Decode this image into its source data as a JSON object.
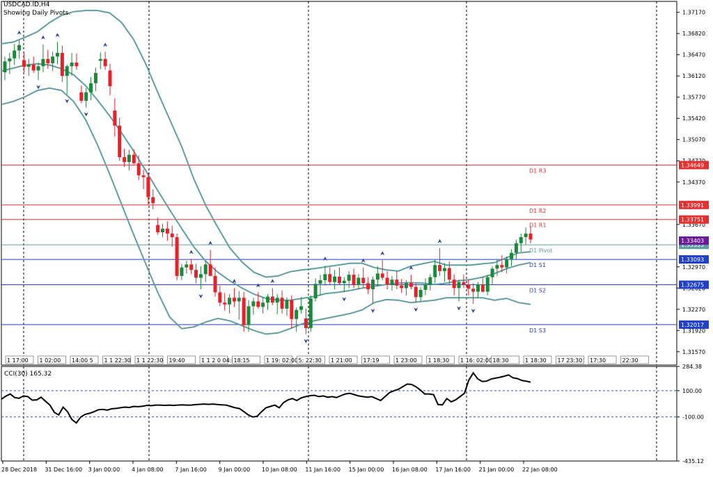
{
  "header": {
    "symbol_line": "USDCAD.ID,H4",
    "pivot_note": "Showing Daily Pivots."
  },
  "colors": {
    "background": "#ffffff",
    "frame": "#000000",
    "bull_candle": "#1a8a3a",
    "bear_candle": "#e8202a",
    "bands": "#5f9ea0",
    "resistance": "#e53030",
    "pivot": "#5f9ea0",
    "support": "#2040c8",
    "fractal_arrow": "#2a3aa0",
    "cci_line": "#000000",
    "cci_levels": "#3050c0",
    "current_price_tag": "#6a1a9a"
  },
  "chart_data": [
    {
      "type": "candlestick",
      "title": "USDCAD.ID,H4",
      "subtitle": "Showing Daily Pivots.",
      "ylim": [
        1.3135,
        1.3735
      ],
      "y_ticks": [
        "1.37170",
        "1.36820",
        "1.36470",
        "1.36120",
        "1.35770",
        "1.35420",
        "1.35070",
        "1.34720",
        "1.34370",
        "1.33670",
        "1.32970",
        "1.32620",
        "1.32270",
        "1.31920",
        "1.31570"
      ],
      "x_ticks": [
        "28 Dec 2018",
        "31 Dec 16:00",
        "3 Jan 00:00",
        "4 Jan 08:00",
        "7 Jan 16:00",
        "9 Jan 00:00",
        "10 Jan 08:00",
        "11 Jan 16:00",
        "15 Jan 00:00",
        "16 Jan 08:00",
        "17 Jan 16:00",
        "21 Jan 00:00",
        "22 Jan 08:00"
      ],
      "pivot_levels": [
        {
          "name": "D1 R3",
          "value": 1.34649,
          "tag": "1.34649",
          "kind": "resistance"
        },
        {
          "name": "D1 R2",
          "value": 1.33991,
          "tag": "1.33991",
          "kind": "resistance"
        },
        {
          "name": "D1 R1",
          "value": 1.33751,
          "tag": "1.33751",
          "kind": "resistance"
        },
        {
          "name": "D1 Pivot",
          "value": 1.33333,
          "tag": "1.33333",
          "kind": "pivot"
        },
        {
          "name": "D1 S1",
          "value": 1.33093,
          "tag": "1.33093",
          "kind": "support"
        },
        {
          "name": "D1 S2",
          "value": 1.32675,
          "tag": "1.32675",
          "kind": "support"
        },
        {
          "name": "D1 S3",
          "value": 1.32017,
          "tag": "1.32017",
          "kind": "support"
        }
      ],
      "current_price_tag": "1.33403",
      "current_price": 1.33403,
      "period_separators": [
        "28 Dec 2018",
        "3 Jan 00:00",
        "11 Jan 16:00",
        "21 Jan 00:00"
      ],
      "session_labels": [
        "1 17:00",
        "1 02:00",
        "14:00 5",
        "1 1 22:30",
        "1 1 22:30",
        "19:40",
        "1 1 2 0 04:00",
        "18:15",
        "1 19: 02:00",
        "5: 22:30",
        "1 21:00",
        "17:19",
        "1 23:00",
        "1 18:30",
        "1 16: 02:00",
        "18:30",
        "1 18:30",
        "17 23:30",
        "17:30",
        "22:30"
      ],
      "candles": [
        [
          1.3618,
          1.3644,
          1.3605,
          1.3636
        ],
        [
          1.3636,
          1.365,
          1.3615,
          1.3641
        ],
        [
          1.3641,
          1.3665,
          1.363,
          1.3654
        ],
        [
          1.3654,
          1.3672,
          1.364,
          1.3663
        ],
        [
          1.3638,
          1.3651,
          1.3618,
          1.3627
        ],
        [
          1.3627,
          1.364,
          1.3612,
          1.3631
        ],
        [
          1.3631,
          1.3644,
          1.3617,
          1.3621
        ],
        [
          1.3621,
          1.3634,
          1.3605,
          1.3628
        ],
        [
          1.3628,
          1.3664,
          1.3618,
          1.364
        ],
        [
          1.364,
          1.3655,
          1.3624,
          1.3633
        ],
        [
          1.3633,
          1.3652,
          1.362,
          1.3644
        ],
        [
          1.3644,
          1.3668,
          1.3631,
          1.365
        ],
        [
          1.365,
          1.3662,
          1.3602,
          1.3612
        ],
        [
          1.3612,
          1.3631,
          1.3582,
          1.3628
        ],
        [
          1.3628,
          1.365,
          1.3612,
          1.3634
        ],
        [
          1.3634,
          1.3649,
          1.3622,
          1.3628
        ],
        [
          1.3585,
          1.3596,
          1.3567,
          1.3571
        ],
        [
          1.3571,
          1.3592,
          1.356,
          1.3585
        ],
        [
          1.3585,
          1.361,
          1.3572,
          1.36
        ],
        [
          1.36,
          1.3626,
          1.3587,
          1.3617
        ],
        [
          1.3637,
          1.3651,
          1.3623,
          1.364
        ],
        [
          1.364,
          1.3652,
          1.3622,
          1.3628
        ],
        [
          1.3621,
          1.3632,
          1.358,
          1.3595
        ],
        [
          1.3555,
          1.3575,
          1.3512,
          1.353
        ],
        [
          1.353,
          1.3543,
          1.3472,
          1.3478
        ],
        [
          1.3478,
          1.3492,
          1.3462,
          1.347
        ],
        [
          1.347,
          1.349,
          1.3456,
          1.3482
        ],
        [
          1.3482,
          1.3491,
          1.3466,
          1.3468
        ],
        [
          1.3468,
          1.3481,
          1.344,
          1.3448
        ],
        [
          1.3448,
          1.3458,
          1.3425,
          1.3445
        ],
        [
          1.3445,
          1.3452,
          1.34,
          1.3412
        ],
        [
          1.3412,
          1.3425,
          1.3392,
          1.3402
        ],
        [
          1.3366,
          1.3378,
          1.335,
          1.3354
        ],
        [
          1.3354,
          1.3368,
          1.3346,
          1.336
        ],
        [
          1.336,
          1.3372,
          1.334,
          1.3352
        ],
        [
          1.3352,
          1.3365,
          1.333,
          1.3346
        ],
        [
          1.3346,
          1.3352,
          1.3275,
          1.3282
        ],
        [
          1.3282,
          1.3302,
          1.3275,
          1.3296
        ],
        [
          1.3296,
          1.3307,
          1.3286,
          1.3301
        ],
        [
          1.3301,
          1.331,
          1.3285,
          1.3292
        ],
        [
          1.3292,
          1.3302,
          1.327,
          1.3279
        ],
        [
          1.3279,
          1.3298,
          1.326,
          1.3285
        ],
        [
          1.3285,
          1.3307,
          1.3272,
          1.3301
        ],
        [
          1.3301,
          1.3325,
          1.3288,
          1.3282
        ],
        [
          1.3282,
          1.3296,
          1.3248,
          1.3255
        ],
        [
          1.3255,
          1.3266,
          1.3232,
          1.3238
        ],
        [
          1.3238,
          1.3254,
          1.3225,
          1.3235
        ],
        [
          1.3235,
          1.3252,
          1.322,
          1.3246
        ],
        [
          1.3246,
          1.3262,
          1.3231,
          1.324
        ],
        [
          1.324,
          1.3257,
          1.321,
          1.3246
        ],
        [
          1.3246,
          1.3256,
          1.319,
          1.3201
        ],
        [
          1.3201,
          1.3242,
          1.319,
          1.3232
        ],
        [
          1.3232,
          1.3246,
          1.3218,
          1.324
        ],
        [
          1.324,
          1.3255,
          1.3228,
          1.3231
        ],
        [
          1.3231,
          1.3246,
          1.322,
          1.3238
        ],
        [
          1.3238,
          1.3252,
          1.3226,
          1.3248
        ],
        [
          1.3248,
          1.3262,
          1.3234,
          1.3238
        ],
        [
          1.3238,
          1.3252,
          1.3219,
          1.3246
        ],
        [
          1.3246,
          1.3258,
          1.322,
          1.3228
        ],
        [
          1.3228,
          1.3247,
          1.3216,
          1.3242
        ],
        [
          1.3242,
          1.325,
          1.3195,
          1.3211
        ],
        [
          1.3211,
          1.323,
          1.319,
          1.3226
        ],
        [
          1.3226,
          1.3247,
          1.322,
          1.3232
        ],
        [
          1.3212,
          1.3228,
          1.3186,
          1.3196
        ],
        [
          1.3196,
          1.325,
          1.319,
          1.3245
        ],
        [
          1.3245,
          1.3278,
          1.324,
          1.3269
        ],
        [
          1.3269,
          1.3284,
          1.325,
          1.3275
        ],
        [
          1.3275,
          1.3299,
          1.3266,
          1.3285
        ],
        [
          1.3285,
          1.3296,
          1.3268,
          1.3272
        ],
        [
          1.3272,
          1.3292,
          1.326,
          1.3281
        ],
        [
          1.3281,
          1.3296,
          1.3268,
          1.327
        ],
        [
          1.327,
          1.328,
          1.3255,
          1.3274
        ],
        [
          1.3274,
          1.329,
          1.3262,
          1.3284
        ],
        [
          1.3284,
          1.3294,
          1.3262,
          1.3267
        ],
        [
          1.3267,
          1.3285,
          1.326,
          1.3279
        ],
        [
          1.3279,
          1.3296,
          1.3262,
          1.327
        ],
        [
          1.327,
          1.328,
          1.3252,
          1.326
        ],
        [
          1.326,
          1.3281,
          1.3236,
          1.3276
        ],
        [
          1.3276,
          1.3298,
          1.3265,
          1.3286
        ],
        [
          1.3286,
          1.3308,
          1.3275,
          1.3279
        ],
        [
          1.3279,
          1.329,
          1.326,
          1.3268
        ],
        [
          1.3268,
          1.3282,
          1.3258,
          1.3276
        ],
        [
          1.3276,
          1.329,
          1.326,
          1.3266
        ],
        [
          1.3266,
          1.3277,
          1.3254,
          1.3262
        ],
        [
          1.3262,
          1.3275,
          1.325,
          1.327
        ],
        [
          1.327,
          1.3284,
          1.326,
          1.3264
        ],
        [
          1.3264,
          1.327,
          1.3238,
          1.3247
        ],
        [
          1.3247,
          1.3264,
          1.324,
          1.3259
        ],
        [
          1.3259,
          1.3278,
          1.325,
          1.3268
        ],
        [
          1.3268,
          1.3285,
          1.3258,
          1.328
        ],
        [
          1.328,
          1.331,
          1.327,
          1.33
        ],
        [
          1.33,
          1.3328,
          1.3282,
          1.329
        ],
        [
          1.329,
          1.3303,
          1.3272,
          1.3295
        ],
        [
          1.3295,
          1.3306,
          1.3268,
          1.3276
        ],
        [
          1.3276,
          1.3285,
          1.325,
          1.3262
        ],
        [
          1.3262,
          1.3276,
          1.324,
          1.3272
        ],
        [
          1.3272,
          1.3284,
          1.3262,
          1.3268
        ],
        [
          1.3268,
          1.3276,
          1.325,
          1.3261
        ],
        [
          1.3261,
          1.327,
          1.3236,
          1.3256
        ],
        [
          1.3256,
          1.3272,
          1.3246,
          1.3268
        ],
        [
          1.3268,
          1.328,
          1.3255,
          1.3256
        ],
        [
          1.3256,
          1.3284,
          1.325,
          1.328
        ],
        [
          1.328,
          1.3298,
          1.3268,
          1.3294
        ],
        [
          1.3294,
          1.331,
          1.3282,
          1.33
        ],
        [
          1.33,
          1.3316,
          1.3288,
          1.3296
        ],
        [
          1.3296,
          1.3314,
          1.3286,
          1.331
        ],
        [
          1.331,
          1.3326,
          1.3298,
          1.332
        ],
        [
          1.332,
          1.3342,
          1.331,
          1.3336
        ],
        [
          1.3336,
          1.3352,
          1.3322,
          1.3346
        ],
        [
          1.3346,
          1.3362,
          1.3334,
          1.3352
        ],
        [
          1.3352,
          1.3364,
          1.3336,
          1.3342
        ]
      ],
      "bands_upper": [
        1.3665,
        1.3668,
        1.3676,
        1.3685,
        1.37,
        1.3712,
        1.3718,
        1.372,
        1.372,
        1.3716,
        1.37,
        1.3672,
        1.3632,
        1.3585,
        1.354,
        1.3495,
        1.3442,
        1.3398,
        1.3362,
        1.3328,
        1.3305,
        1.3288,
        1.328,
        1.3282,
        1.3289,
        1.3292,
        1.3294,
        1.3297,
        1.33,
        1.3303,
        1.3303,
        1.3296,
        1.3292,
        1.329,
        1.3298,
        1.3302,
        1.3306,
        1.33,
        1.33,
        1.33,
        1.3302,
        1.3304,
        1.3312,
        1.332,
        1.3322
      ],
      "bands_middle": [
        1.362,
        1.3625,
        1.363,
        1.3632,
        1.363,
        1.3624,
        1.3614,
        1.3596,
        1.3572,
        1.3546,
        1.3518,
        1.3488,
        1.3456,
        1.3423,
        1.3391,
        1.336,
        1.333,
        1.3306,
        1.3288,
        1.3274,
        1.3262,
        1.3252,
        1.3245,
        1.3242,
        1.3242,
        1.3245,
        1.3248,
        1.3253,
        1.3255,
        1.3258,
        1.3262,
        1.3265,
        1.3268,
        1.327,
        1.3271,
        1.327,
        1.3268,
        1.327,
        1.3274,
        1.3276,
        1.328,
        1.3286,
        1.3294,
        1.33,
        1.3304
      ],
      "bands_lower": [
        1.3565,
        1.357,
        1.3578,
        1.3588,
        1.3592,
        1.3588,
        1.357,
        1.354,
        1.3498,
        1.345,
        1.34,
        1.335,
        1.3302,
        1.3255,
        1.3214,
        1.3195,
        1.3198,
        1.3206,
        1.3212,
        1.3208,
        1.32,
        1.3192,
        1.3186,
        1.3188,
        1.3195,
        1.3203,
        1.3208,
        1.3212,
        1.3216,
        1.322,
        1.3226,
        1.3238,
        1.3243,
        1.3242,
        1.3238,
        1.324,
        1.3242,
        1.3246,
        1.3246,
        1.3246,
        1.3246,
        1.3242,
        1.3245,
        1.3238,
        1.3235
      ]
    },
    {
      "type": "line",
      "title": "CCI(30) 165.32",
      "ylim": [
        -435.12,
        284.38
      ],
      "y_ticks": [
        "284.38",
        "100.00",
        "-100.00",
        "-435.12"
      ],
      "levels": [
        100,
        -100
      ],
      "values": [
        35,
        58,
        75,
        48,
        42,
        60,
        55,
        28,
        30,
        50,
        20,
        -10,
        -65,
        -85,
        -25,
        -60,
        -120,
        -145,
        -100,
        -80,
        -72,
        -60,
        -45,
        -42,
        -48,
        -38,
        -35,
        -30,
        -25,
        -28,
        -20,
        -22,
        -18,
        -12,
        -14,
        -10,
        -10,
        -12,
        -10,
        -12,
        -10,
        -8,
        -10,
        -10,
        -6,
        -4,
        -2,
        -4,
        -2,
        -5,
        -8,
        -10,
        -20,
        -30,
        -36,
        -60,
        -85,
        -100,
        -95,
        -60,
        -30,
        -20,
        -10,
        -30,
        10,
        30,
        40,
        25,
        45,
        55,
        62,
        65,
        55,
        60,
        50,
        55,
        48,
        62,
        75,
        80,
        70,
        60,
        55,
        50,
        55,
        40,
        25,
        55,
        85,
        100,
        110,
        130,
        150,
        148,
        130,
        105,
        75,
        75,
        70,
        -5,
        -8,
        40,
        15,
        30,
        55,
        80,
        180,
        235,
        190,
        170,
        172,
        188,
        195,
        202,
        210,
        220,
        198,
        192,
        178,
        172,
        165
      ]
    }
  ]
}
